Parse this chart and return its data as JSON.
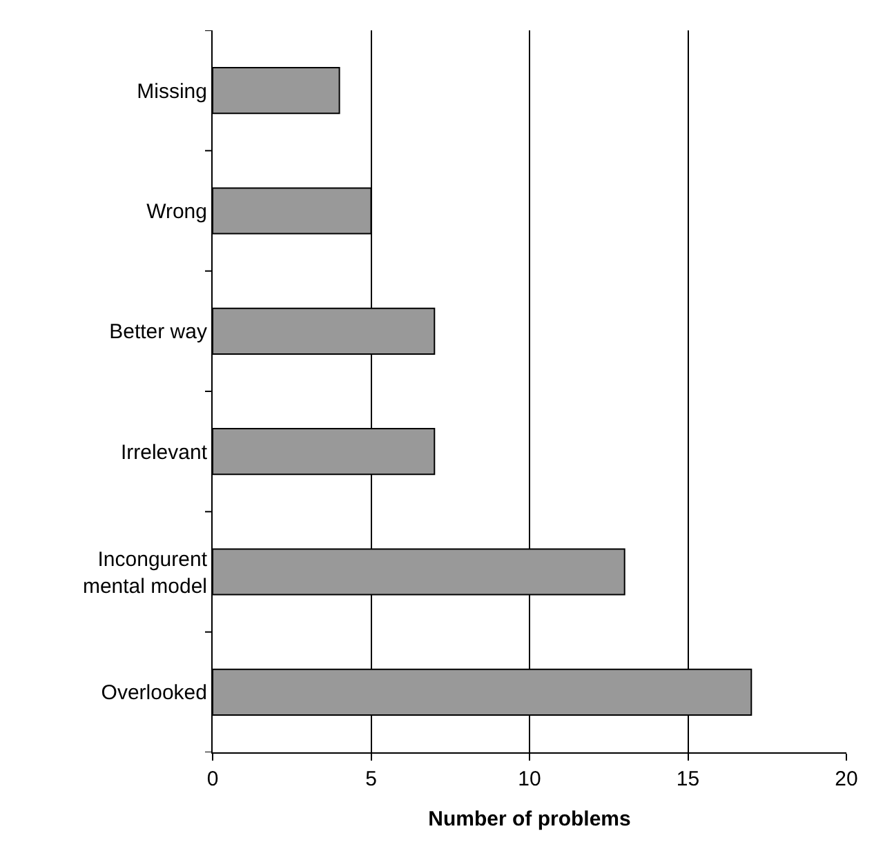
{
  "chart_data": {
    "type": "bar",
    "orientation": "horizontal",
    "xlabel": "Number of problems",
    "categories": [
      "Missing",
      "Wrong",
      "Better way",
      "Irrelevant",
      "Incongurent\nmental model",
      "Overlooked"
    ],
    "values": [
      4,
      5,
      7,
      7,
      13,
      17
    ],
    "color": "#999999",
    "xlim": [
      0,
      20
    ],
    "xticks": [
      0,
      5,
      10,
      15,
      20
    ],
    "grid": "x",
    "legend": false
  }
}
